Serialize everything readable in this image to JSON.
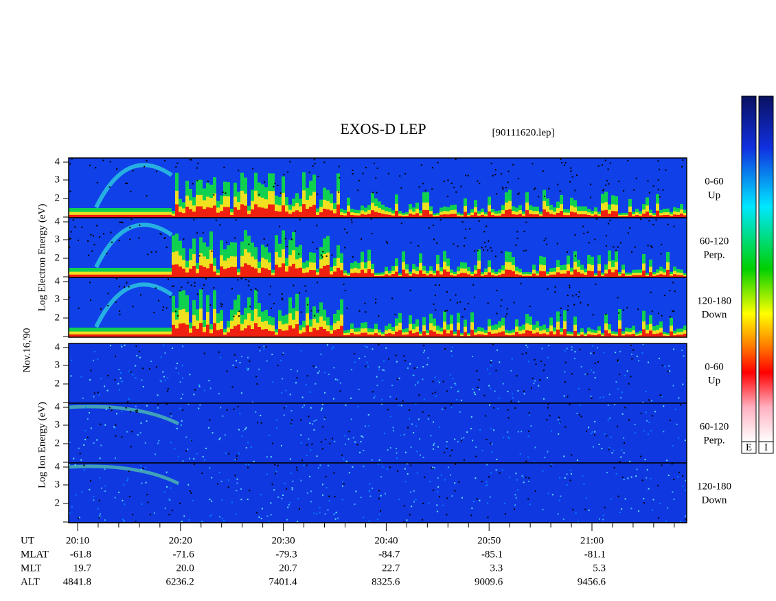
{
  "title": "EXOS-D LEP",
  "file": "[90111620.lep]",
  "date": "Nov.16,'90",
  "energy_ticks": [
    4,
    3,
    2
  ],
  "groups": [
    {
      "label": "Log Electron Energy (eV)",
      "panels": [
        {
          "angle": "0-60",
          "direction": "Up"
        },
        {
          "angle": "60-120",
          "direction": "Perp."
        },
        {
          "angle": "120-180",
          "direction": "Down"
        }
      ]
    },
    {
      "label": "Log Ion Energy (eV)",
      "panels": [
        {
          "angle": "0-60",
          "direction": "Up"
        },
        {
          "angle": "60-120",
          "direction": "Perp."
        },
        {
          "angle": "120-180",
          "direction": "Down"
        }
      ]
    }
  ],
  "ephemeris": {
    "rows": [
      {
        "label": "UT",
        "values": [
          "20:10",
          "20:20",
          "20:30",
          "20:40",
          "20:50",
          "21:00"
        ]
      },
      {
        "label": "MLAT",
        "values": [
          "-61.8",
          "-71.6",
          "-79.3",
          "-84.7",
          "-85.1",
          "-81.1"
        ]
      },
      {
        "label": "MLT",
        "values": [
          "19.7",
          "20.0",
          "20.7",
          "22.7",
          "3.3",
          "5.3"
        ]
      },
      {
        "label": "ALT",
        "values": [
          "4841.8",
          "6236.2",
          "7401.4",
          "8325.6",
          "9009.6",
          "9456.6"
        ]
      }
    ]
  },
  "colorbar_labels": [
    "E",
    "I"
  ]
}
